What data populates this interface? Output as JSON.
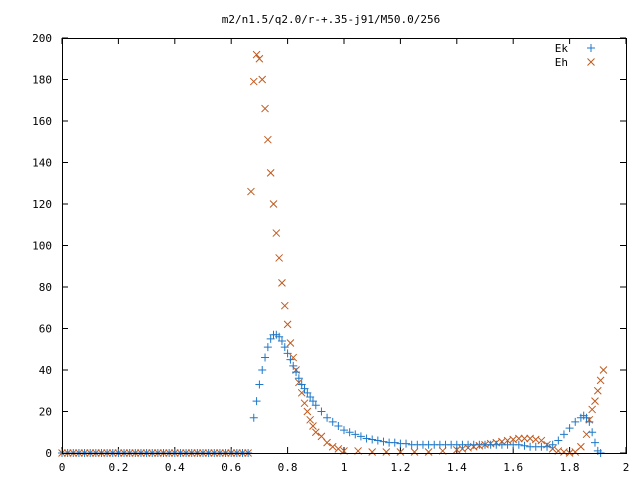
{
  "chart_data": {
    "type": "scatter",
    "title": "m2/n1.5/q2.0/r-+.35-j91/M50.0/256",
    "xlabel": "",
    "ylabel": "",
    "xlim": [
      0,
      2
    ],
    "ylim": [
      0,
      200
    ],
    "xticks": [
      "0",
      "0.2",
      "0.4",
      "0.6",
      "0.8",
      "1",
      "1.2",
      "1.4",
      "1.6",
      "1.8",
      "2"
    ],
    "yticks": [
      "0",
      "20",
      "40",
      "60",
      "80",
      "100",
      "120",
      "140",
      "160",
      "180",
      "200"
    ],
    "grid": false,
    "legend_position": "top-right",
    "series": [
      {
        "name": "Ek",
        "marker": "plus",
        "color": "#1f78c8",
        "x": [
          0.0,
          0.02,
          0.04,
          0.06,
          0.08,
          0.1,
          0.12,
          0.14,
          0.16,
          0.18,
          0.2,
          0.22,
          0.24,
          0.26,
          0.28,
          0.3,
          0.32,
          0.34,
          0.36,
          0.38,
          0.4,
          0.42,
          0.44,
          0.46,
          0.48,
          0.5,
          0.52,
          0.54,
          0.56,
          0.58,
          0.6,
          0.62,
          0.64,
          0.66,
          0.68,
          0.69,
          0.7,
          0.71,
          0.72,
          0.73,
          0.74,
          0.75,
          0.76,
          0.77,
          0.78,
          0.79,
          0.8,
          0.81,
          0.82,
          0.83,
          0.84,
          0.85,
          0.86,
          0.87,
          0.88,
          0.89,
          0.9,
          0.92,
          0.94,
          0.96,
          0.98,
          1.0,
          1.02,
          1.04,
          1.06,
          1.08,
          1.1,
          1.12,
          1.14,
          1.16,
          1.18,
          1.2,
          1.22,
          1.24,
          1.26,
          1.28,
          1.3,
          1.32,
          1.34,
          1.36,
          1.38,
          1.4,
          1.42,
          1.44,
          1.46,
          1.48,
          1.5,
          1.52,
          1.54,
          1.56,
          1.58,
          1.6,
          1.62,
          1.64,
          1.66,
          1.68,
          1.7,
          1.72,
          1.74,
          1.76,
          1.78,
          1.8,
          1.82,
          1.84,
          1.85,
          1.86,
          1.87,
          1.88,
          1.89,
          1.9,
          1.91
        ],
        "y": [
          0,
          0,
          0,
          0,
          0,
          0,
          0,
          0,
          0,
          0,
          0,
          0,
          0,
          0,
          0,
          0,
          0,
          0,
          0,
          0,
          0,
          0,
          0,
          0,
          0,
          0,
          0,
          0,
          0,
          0,
          0,
          0,
          0,
          0,
          17,
          25,
          33,
          40,
          46,
          51,
          55,
          57,
          57,
          56,
          54,
          51,
          48,
          45,
          42,
          39,
          36,
          33,
          31,
          29,
          27,
          25,
          23,
          20,
          17,
          15,
          13,
          11,
          10,
          9,
          8,
          7,
          6.5,
          6,
          5.5,
          5,
          5,
          4.5,
          4.5,
          4,
          4,
          4,
          4,
          4,
          4,
          4,
          4,
          4,
          4,
          4,
          4,
          4,
          4,
          4,
          4,
          4,
          4,
          4,
          4,
          3.5,
          3,
          3,
          3,
          3,
          4,
          6,
          9,
          12,
          15,
          17,
          18,
          17,
          15,
          10,
          5,
          1,
          0
        ]
      },
      {
        "name": "Eh",
        "marker": "cross",
        "color": "#c05a1f",
        "x": [
          0.0,
          0.02,
          0.04,
          0.06,
          0.08,
          0.1,
          0.12,
          0.14,
          0.16,
          0.18,
          0.2,
          0.22,
          0.24,
          0.26,
          0.28,
          0.3,
          0.32,
          0.34,
          0.36,
          0.38,
          0.4,
          0.42,
          0.44,
          0.46,
          0.48,
          0.5,
          0.52,
          0.54,
          0.56,
          0.58,
          0.6,
          0.62,
          0.64,
          0.66,
          0.67,
          0.68,
          0.69,
          0.7,
          0.71,
          0.72,
          0.73,
          0.74,
          0.75,
          0.76,
          0.77,
          0.78,
          0.79,
          0.8,
          0.81,
          0.82,
          0.83,
          0.84,
          0.85,
          0.86,
          0.87,
          0.88,
          0.89,
          0.9,
          0.92,
          0.94,
          0.96,
          0.98,
          1.0,
          1.05,
          1.1,
          1.15,
          1.2,
          1.25,
          1.3,
          1.35,
          1.4,
          1.42,
          1.44,
          1.46,
          1.48,
          1.5,
          1.52,
          1.54,
          1.56,
          1.58,
          1.6,
          1.62,
          1.64,
          1.66,
          1.68,
          1.7,
          1.72,
          1.74,
          1.76,
          1.78,
          1.8,
          1.82,
          1.84,
          1.86,
          1.87,
          1.88,
          1.89,
          1.9,
          1.91,
          1.92
        ],
        "y": [
          0,
          0,
          0,
          0,
          0,
          0,
          0,
          0,
          0,
          0,
          0,
          0,
          0,
          0,
          0,
          0,
          0,
          0,
          0,
          0,
          0,
          0,
          0,
          0,
          0,
          0,
          0,
          0,
          0,
          0,
          0,
          0,
          0,
          0,
          126,
          179,
          192,
          190,
          180,
          166,
          151,
          135,
          120,
          106,
          94,
          82,
          71,
          62,
          53,
          46,
          40,
          34,
          29,
          24,
          20,
          16,
          13,
          10,
          8,
          5,
          3,
          2,
          1,
          1,
          0.5,
          0.5,
          0.5,
          0.5,
          0.5,
          1,
          1.5,
          2,
          2.5,
          3,
          3.5,
          4,
          4.5,
          5,
          5.5,
          6,
          6.5,
          7,
          7,
          7,
          6.5,
          6,
          4,
          2,
          1,
          0.5,
          0,
          0.5,
          3,
          9,
          16,
          21,
          25,
          30,
          35,
          40
        ]
      }
    ]
  }
}
